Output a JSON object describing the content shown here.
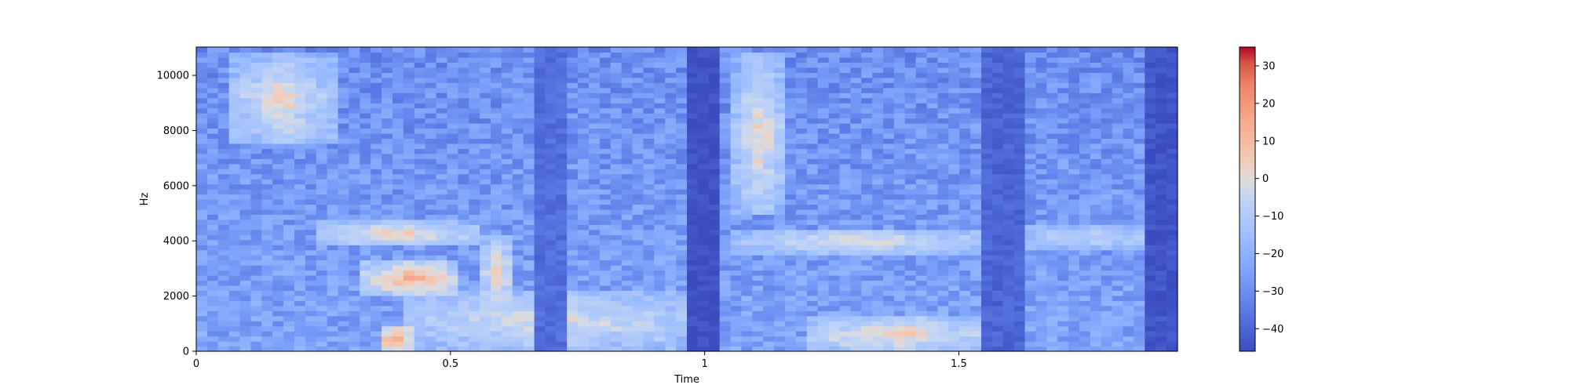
{
  "chart_data": {
    "type": "heatmap",
    "title": "",
    "xlabel": "Time",
    "ylabel": "Hz",
    "xlim": [
      0,
      1.93
    ],
    "ylim": [
      0,
      11025
    ],
    "x_ticks": [
      0,
      0.5,
      1,
      1.5
    ],
    "x_tick_labels": [
      "0",
      "0.5",
      "1",
      "1.5"
    ],
    "y_ticks": [
      0,
      2000,
      4000,
      6000,
      8000,
      10000
    ],
    "y_tick_labels": [
      "0",
      "2000",
      "4000",
      "6000",
      "8000",
      "10000"
    ],
    "colorbar": {
      "vmin": -46,
      "vmax": 35,
      "ticks": [
        30,
        20,
        10,
        0,
        -10,
        -20,
        -30,
        -40
      ],
      "tick_labels": [
        "30",
        "20",
        "10",
        "0",
        "−10",
        "−20",
        "−30",
        "−40"
      ],
      "colormap": "coolwarm"
    },
    "spectral_regions": [
      {
        "t": [
          0.07,
          0.27
        ],
        "f": [
          7500,
          10800
        ],
        "db": 4
      },
      {
        "t": [
          0.23,
          0.55
        ],
        "f": [
          3800,
          4700
        ],
        "db": 5
      },
      {
        "t": [
          0.33,
          0.52
        ],
        "f": [
          2000,
          3300
        ],
        "db": 14
      },
      {
        "t": [
          0.36,
          0.42
        ],
        "f": [
          0,
          1000
        ],
        "db": 20
      },
      {
        "t": [
          0.55,
          0.63
        ],
        "f": [
          1500,
          4200
        ],
        "db": 2
      },
      {
        "t": [
          0.4,
          0.98
        ],
        "f": [
          0,
          2200
        ],
        "db": 0
      },
      {
        "t": [
          1.06,
          1.16
        ],
        "f": [
          5000,
          10800
        ],
        "db": 4
      },
      {
        "t": [
          1.05,
          1.55
        ],
        "f": [
          3500,
          4500
        ],
        "db": 0
      },
      {
        "t": [
          1.2,
          1.55
        ],
        "f": [
          0,
          1200
        ],
        "db": 6
      },
      {
        "t": [
          1.62,
          1.9
        ],
        "f": [
          3700,
          4600
        ],
        "db": -5
      }
    ],
    "silence_bands": [
      {
        "t": [
          0.66,
          0.72
        ],
        "db": -38
      },
      {
        "t": [
          0.97,
          1.02
        ],
        "db": -45
      },
      {
        "t": [
          1.55,
          1.62
        ],
        "db": -40
      },
      {
        "t": [
          1.87,
          1.93
        ],
        "db": -44
      }
    ]
  }
}
